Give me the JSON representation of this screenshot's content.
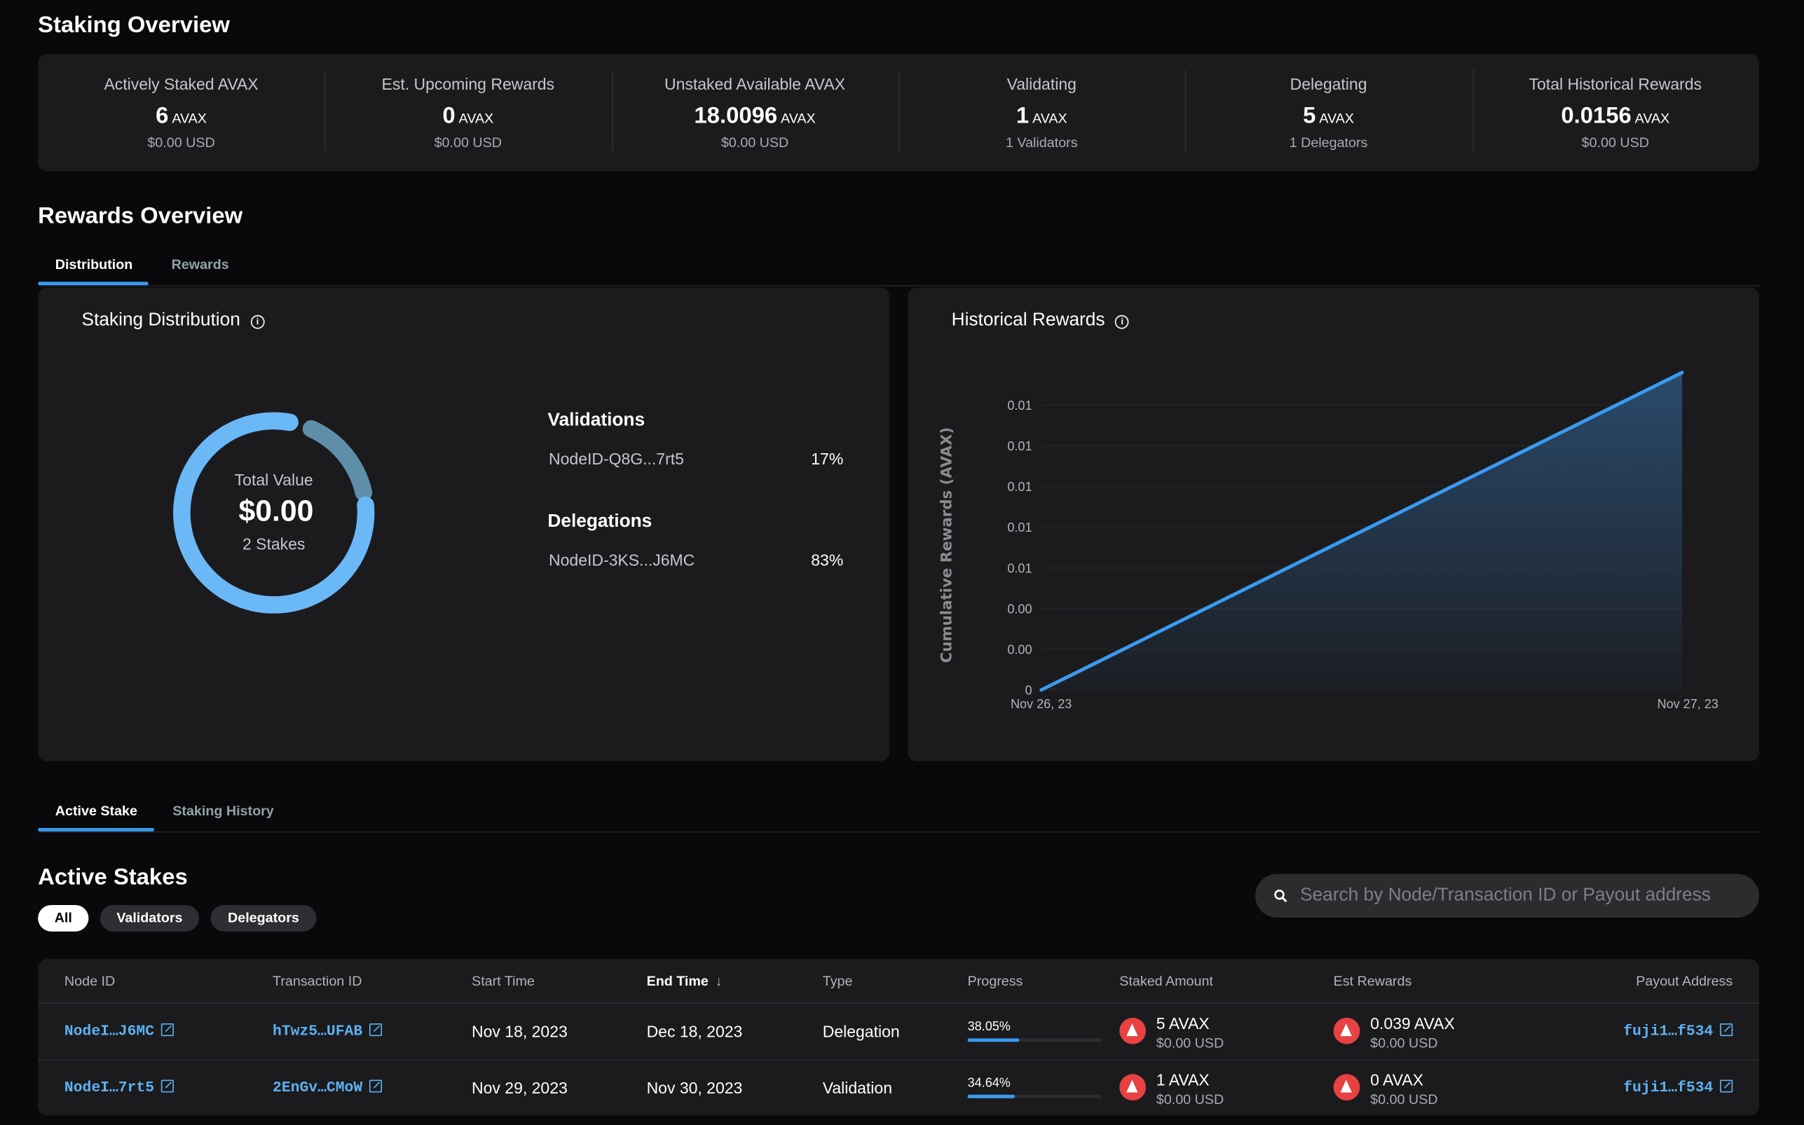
{
  "staking_overview": {
    "title": "Staking Overview",
    "stats": [
      {
        "label": "Actively Staked AVAX",
        "value": "6",
        "unit": "AVAX",
        "sub": "$0.00 USD"
      },
      {
        "label": "Est. Upcoming Rewards",
        "value": "0",
        "unit": "AVAX",
        "sub": "$0.00 USD"
      },
      {
        "label": "Unstaked Available AVAX",
        "value": "18.0096",
        "unit": "AVAX",
        "sub": "$0.00 USD"
      },
      {
        "label": "Validating",
        "value": "1",
        "unit": "AVAX",
        "sub": "1 Validators"
      },
      {
        "label": "Delegating",
        "value": "5",
        "unit": "AVAX",
        "sub": "1 Delegators"
      },
      {
        "label": "Total Historical Rewards",
        "value": "0.0156",
        "unit": "AVAX",
        "sub": "$0.00 USD"
      }
    ]
  },
  "rewards_overview": {
    "title": "Rewards Overview",
    "tabs": [
      {
        "label": "Distribution",
        "active": true
      },
      {
        "label": "Rewards",
        "active": false
      }
    ],
    "distribution": {
      "title": "Staking Distribution",
      "center_label": "Total Value",
      "center_value": "$0.00",
      "center_sub": "2 Stakes",
      "colors": {
        "validation": "#5f8fa8",
        "delegation": "#6bb8f7"
      },
      "groups": [
        {
          "heading": "Validations",
          "node": "NodeID-Q8G...7rt5",
          "percent": "17%",
          "value": 17
        },
        {
          "heading": "Delegations",
          "node": "NodeID-3KS...J6MC",
          "percent": "83%",
          "value": 83
        }
      ]
    },
    "historical": {
      "title": "Historical Rewards"
    }
  },
  "chart_data": {
    "type": "area",
    "title": "Historical Rewards",
    "xlabel": "",
    "ylabel": "Cumulative Rewards (AVAX)",
    "x": [
      "Nov 26, 23",
      "Nov 27, 23"
    ],
    "series": [
      {
        "values": [
          0,
          0.0156
        ]
      }
    ],
    "yticks": [
      0,
      0.002,
      0.004,
      0.006,
      0.008,
      0.01,
      0.012,
      0.014
    ],
    "ytick_labels": [
      "0",
      "0.00",
      "0.00",
      "0.01",
      "0.01",
      "0.01",
      "0.01",
      "0.01"
    ],
    "ylim": [
      0,
      0.0156
    ],
    "grid": true,
    "line_color": "#3a9bf0"
  },
  "stakes": {
    "tabs": [
      {
        "label": "Active Stake",
        "active": true
      },
      {
        "label": "Staking History",
        "active": false
      }
    ],
    "title": "Active Stakes",
    "filters": [
      {
        "label": "All",
        "active": true
      },
      {
        "label": "Validators",
        "active": false
      },
      {
        "label": "Delegators",
        "active": false
      }
    ],
    "search_placeholder": "Search by Node/Transaction ID or Payout address",
    "columns": [
      "Node ID",
      "Transaction ID",
      "Start Time",
      "End Time",
      "Type",
      "Progress",
      "Staked Amount",
      "Est Rewards",
      "Payout Address"
    ],
    "sorted_column": "End Time",
    "rows": [
      {
        "node": "NodeI…J6MC",
        "tx": "hTwz5…UFAB",
        "start": "Nov 18, 2023",
        "end": "Dec 18, 2023",
        "type": "Delegation",
        "progress_label": "38.05%",
        "progress": 38.05,
        "staked": "5 AVAX",
        "staked_usd": "$0.00 USD",
        "rewards": "0.039 AVAX",
        "rewards_usd": "$0.00 USD",
        "payout": "fuji1…f534"
      },
      {
        "node": "NodeI…7rt5",
        "tx": "2EnGv…CMoW",
        "start": "Nov 29, 2023",
        "end": "Nov 30, 2023",
        "type": "Validation",
        "progress_label": "34.64%",
        "progress": 34.64,
        "staked": "1 AVAX",
        "staked_usd": "$0.00 USD",
        "rewards": "0 AVAX",
        "rewards_usd": "$0.00 USD",
        "payout": "fuji1…f534"
      }
    ]
  }
}
